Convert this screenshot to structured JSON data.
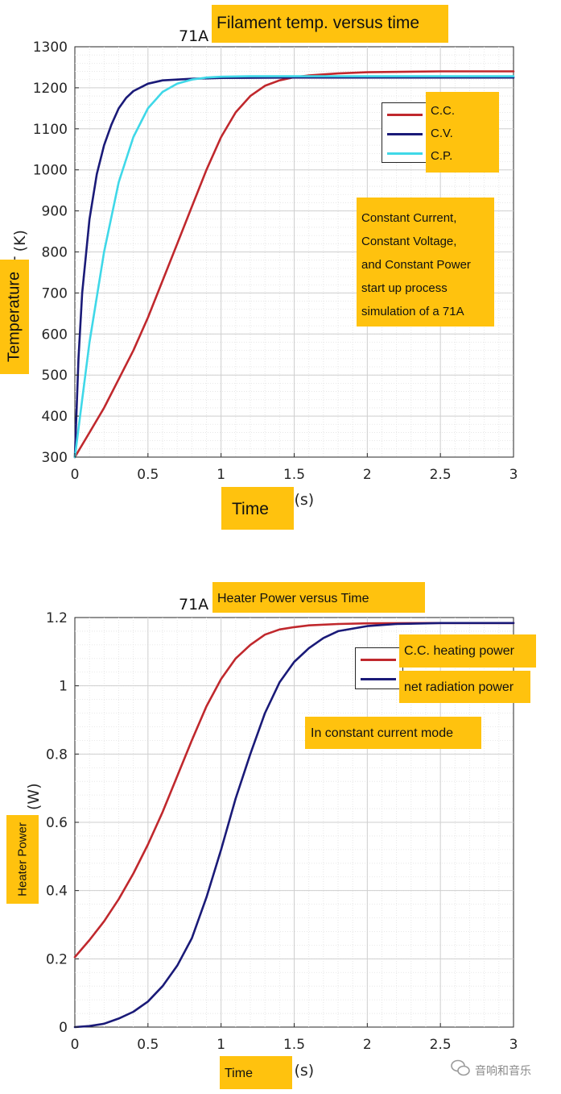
{
  "chart_data": [
    {
      "type": "line",
      "title_prefix": "71A",
      "title_overlay": "Filament temp. versus time",
      "xlabel_tail": "t (s)",
      "xlabel_overlay": "Time",
      "ylabel_tail": "T (K)",
      "ylabel_overlay": "Temperature",
      "xlim": [
        0,
        3
      ],
      "ylim": [
        300,
        1300
      ],
      "x_ticks": [
        "0",
        "0.5",
        "1",
        "1.5",
        "2",
        "2.5",
        "3"
      ],
      "y_ticks": [
        "300",
        "400",
        "500",
        "600",
        "700",
        "800",
        "900",
        "1000",
        "1100",
        "1200",
        "1300"
      ],
      "grid": true,
      "legend_position": "top-right",
      "series": [
        {
          "name": "C.C.",
          "color": "#c0282d",
          "x": [
            0,
            0.1,
            0.2,
            0.3,
            0.4,
            0.5,
            0.6,
            0.7,
            0.8,
            0.9,
            1.0,
            1.1,
            1.2,
            1.3,
            1.4,
            1.5,
            1.6,
            1.8,
            2.0,
            2.5,
            3.0
          ],
          "y": [
            300,
            360,
            420,
            490,
            560,
            640,
            730,
            820,
            910,
            1000,
            1080,
            1140,
            1180,
            1205,
            1218,
            1226,
            1230,
            1235,
            1238,
            1240,
            1240
          ]
        },
        {
          "name": "C.V.",
          "color": "#1a1a78",
          "x": [
            0,
            0.025,
            0.05,
            0.1,
            0.15,
            0.2,
            0.25,
            0.3,
            0.35,
            0.4,
            0.5,
            0.6,
            0.8,
            1.0,
            1.5,
            2.0,
            3.0
          ],
          "y": [
            300,
            540,
            700,
            880,
            990,
            1060,
            1110,
            1150,
            1175,
            1192,
            1210,
            1218,
            1222,
            1224,
            1225,
            1225,
            1225
          ]
        },
        {
          "name": "C.P.",
          "color": "#3fd8e8",
          "x": [
            0,
            0.05,
            0.1,
            0.2,
            0.3,
            0.4,
            0.5,
            0.6,
            0.7,
            0.8,
            0.9,
            1.0,
            1.2,
            1.5,
            2.0,
            3.0
          ],
          "y": [
            300,
            440,
            580,
            800,
            970,
            1080,
            1150,
            1190,
            1210,
            1220,
            1225,
            1227,
            1228,
            1228,
            1228,
            1228
          ]
        }
      ],
      "annotation": [
        "Constant Current,",
        "Constant Voltage,",
        "and Constant Power",
        "start up process",
        "simulation of a 71A"
      ]
    },
    {
      "type": "line",
      "title_prefix": "71A",
      "title_overlay": "Heater Power versus Time",
      "xlabel_tail": "t (s)",
      "xlabel_overlay": "Time",
      "ylabel_tail": "(W)",
      "ylabel_overlay": "Heater Power",
      "xlim": [
        0,
        3
      ],
      "ylim": [
        0,
        1.2
      ],
      "x_ticks": [
        "0",
        "0.5",
        "1",
        "1.5",
        "2",
        "2.5",
        "3"
      ],
      "y_ticks": [
        "0",
        "0.2",
        "0.4",
        "0.6",
        "0.8",
        "1",
        "1.2"
      ],
      "grid": true,
      "legend_position": "top-right",
      "series": [
        {
          "name": "C.C. heating power",
          "color": "#c0282d",
          "x": [
            0,
            0.1,
            0.2,
            0.3,
            0.4,
            0.5,
            0.6,
            0.7,
            0.8,
            0.9,
            1.0,
            1.1,
            1.2,
            1.3,
            1.4,
            1.5,
            1.6,
            1.8,
            2.0,
            2.5,
            3.0
          ],
          "y": [
            0.205,
            0.255,
            0.31,
            0.375,
            0.45,
            0.535,
            0.63,
            0.735,
            0.84,
            0.94,
            1.02,
            1.08,
            1.12,
            1.15,
            1.165,
            1.172,
            1.177,
            1.181,
            1.183,
            1.184,
            1.184
          ]
        },
        {
          "name": "net radiation power",
          "color": "#1a1a78",
          "x": [
            0,
            0.1,
            0.2,
            0.3,
            0.4,
            0.5,
            0.6,
            0.7,
            0.8,
            0.9,
            1.0,
            1.1,
            1.2,
            1.3,
            1.4,
            1.5,
            1.6,
            1.7,
            1.8,
            2.0,
            2.2,
            2.5,
            3.0
          ],
          "y": [
            0.0,
            0.003,
            0.01,
            0.025,
            0.045,
            0.075,
            0.12,
            0.18,
            0.26,
            0.38,
            0.52,
            0.67,
            0.8,
            0.92,
            1.01,
            1.07,
            1.11,
            1.14,
            1.16,
            1.175,
            1.181,
            1.184,
            1.184
          ]
        }
      ],
      "annotation": [
        "In constant current mode"
      ]
    }
  ],
  "watermark": {
    "text": "音响和音乐",
    "icon": "wechat-icon"
  }
}
